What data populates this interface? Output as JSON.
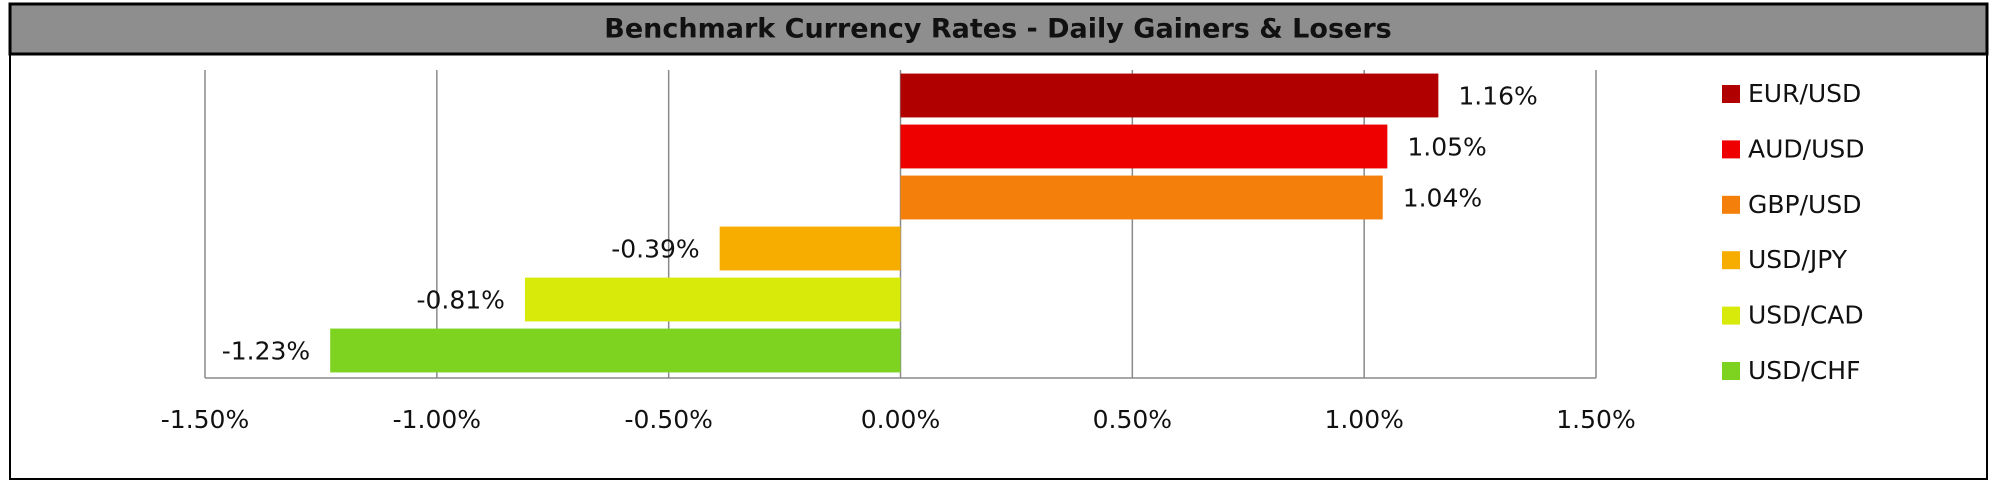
{
  "chart_data": {
    "type": "hbar",
    "title": "Benchmark Currency Rates - Daily Gainers & Losers",
    "series": [
      {
        "name": "EUR/USD",
        "color": "#b00000",
        "values": [
          1.16
        ],
        "value_labels": [
          "1.16%"
        ]
      },
      {
        "name": "AUD/USD",
        "color": "#ee0000",
        "values": [
          1.05
        ],
        "value_labels": [
          "1.05%"
        ]
      },
      {
        "name": "GBP/USD",
        "color": "#f47f0a",
        "values": [
          1.04
        ],
        "value_labels": [
          "1.04%"
        ]
      },
      {
        "name": "USD/JPY",
        "color": "#f7ad00",
        "values": [
          -0.39
        ],
        "value_labels": [
          "-0.39%"
        ]
      },
      {
        "name": "USD/CAD",
        "color": "#d8ea0a",
        "values": [
          -0.81
        ],
        "value_labels": [
          "-0.81%"
        ]
      },
      {
        "name": "USD/CHF",
        "color": "#7ed321",
        "values": [
          -1.23
        ],
        "value_labels": [
          "-1.23%"
        ]
      }
    ],
    "xlim": [
      -1.5,
      1.5
    ],
    "xticks": [
      {
        "value": -1.5,
        "label": "-1.50%"
      },
      {
        "value": -1.0,
        "label": "-1.00%"
      },
      {
        "value": -0.5,
        "label": "-0.50%"
      },
      {
        "value": 0,
        "label": "0.00%"
      },
      {
        "value": 0.5,
        "label": "0.50%"
      },
      {
        "value": 1.0,
        "label": "1.00%"
      },
      {
        "value": 1.5,
        "label": "1.50%"
      }
    ],
    "grid": true,
    "legend": "right"
  }
}
